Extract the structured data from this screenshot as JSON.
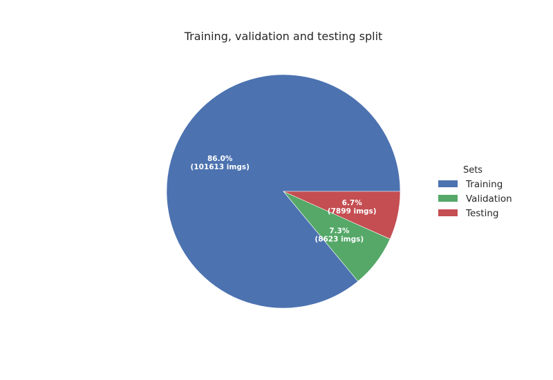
{
  "chart_data": {
    "type": "pie",
    "title": "Training, validation and testing split",
    "categories": [
      "Training",
      "Validation",
      "Testing"
    ],
    "values": [
      101613,
      8623,
      7899
    ],
    "percent_labels": [
      "86.0%",
      "7.3%",
      "6.7%"
    ],
    "count_labels": [
      "(101613 imgs)",
      "(8623 imgs)",
      "(7899 imgs)"
    ],
    "colors": [
      "#4c72b0",
      "#55a868",
      "#c44e52"
    ],
    "start_angle_deg": 0,
    "direction": "counterclockwise",
    "legend": {
      "title": "Sets",
      "placement": "center-right",
      "entries": [
        "Training",
        "Validation",
        "Testing"
      ]
    }
  }
}
